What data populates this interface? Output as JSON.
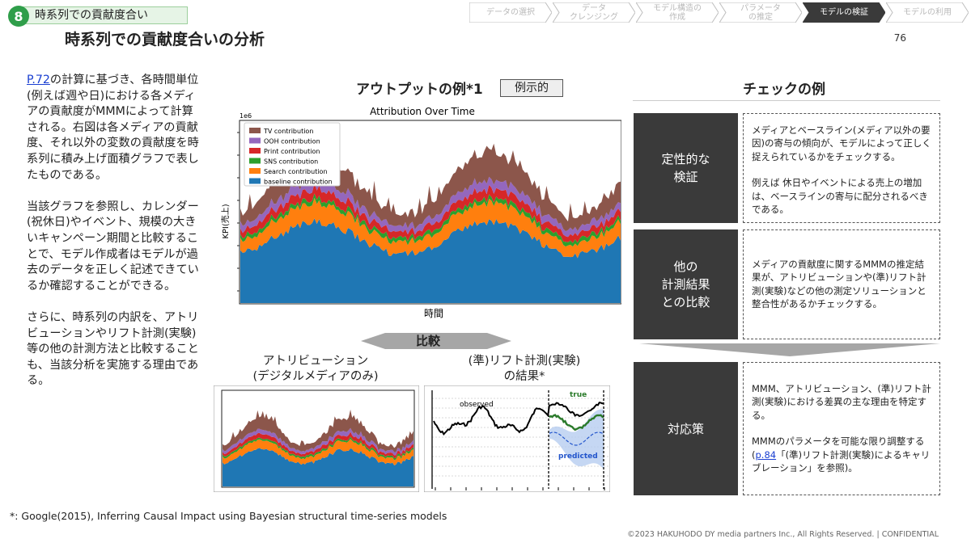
{
  "header": {
    "section_number": "8",
    "section_label": "時系列での貢献度合い",
    "page_title": "時系列での貢献度合いの分析",
    "page_number": "76"
  },
  "steps": [
    {
      "label": "データの選択",
      "active": false
    },
    {
      "label": "データ\nクレンジング",
      "active": false
    },
    {
      "label": "モデル構造の\n作成",
      "active": false
    },
    {
      "label": "パラメータ\nの推定",
      "active": false
    },
    {
      "label": "モデルの検証",
      "active": true
    },
    {
      "label": "モデルの利用",
      "active": false
    }
  ],
  "left": {
    "p1_link": "P.72",
    "p1_text": "の計算に基づき、各時間単位(例えば週や日)における各メディアの貢献度がMMMによって計算される。右図は各メディアの貢献度、それ以外の変数の貢献度を時系列に積み上げ面積グラフで表したものである。",
    "p2": "当該グラフを参照し、カレンダー(祝休日)やイベント、規模の大きいキャンペーン期間と比較することで、モデル作成者はモデルが過去のデータを正しく記述できているか確認することができる。",
    "p3": "さらに、時系列の内訳を、アトリビューションやリフト計測(実験)等の他の計測方法と比較することも、当該分析を実施する理由である。"
  },
  "middle": {
    "heading": "アウトプットの例*1",
    "tag": "例示的",
    "compare": "比較",
    "attribution_title": "アトリビューション\n(デジタルメディアのみ)",
    "lift_title": "(準)リフト計測(実験)\nの結果*"
  },
  "chart_data": [
    {
      "type": "area",
      "title": "Attribution Over Time",
      "xlabel": "時間",
      "ylabel": "KPI(売上)",
      "y_scale_label": "1e6",
      "legend_position": "top-left",
      "series": [
        {
          "name": "TV contribution",
          "color": "#8c564b"
        },
        {
          "name": "OOH contribution",
          "color": "#9467bd"
        },
        {
          "name": "Print contribution",
          "color": "#d62728"
        },
        {
          "name": "SNS contribution",
          "color": "#2ca02c"
        },
        {
          "name": "Search contribution",
          "color": "#ff7f0e"
        },
        {
          "name": "baseline contribution",
          "color": "#1f77b4"
        }
      ]
    },
    {
      "type": "area",
      "title": "",
      "series": [
        {
          "name": "TV contribution",
          "color": "#8c564b"
        },
        {
          "name": "OOH contribution",
          "color": "#9467bd"
        },
        {
          "name": "Print contribution",
          "color": "#d62728"
        },
        {
          "name": "SNS contribution",
          "color": "#2ca02c"
        },
        {
          "name": "Search contribution",
          "color": "#ff7f0e"
        },
        {
          "name": "baseline contribution",
          "color": "#1f77b4"
        }
      ]
    },
    {
      "type": "line",
      "annotations": {
        "observed": "observed",
        "true": "true",
        "predicted": "predicted"
      },
      "series": [
        {
          "name": "observed",
          "color": "#000000"
        },
        {
          "name": "true",
          "color": "#2a7a2a"
        },
        {
          "name": "predicted",
          "color": "#2255cc"
        }
      ]
    }
  ],
  "right": {
    "heading": "チェックの例",
    "box1_label": "定性的な\n検証",
    "box1_p1": "メディアとベースライン(メディア以外の要因)の寄与の傾向が、モデルによって正しく捉えられているかをチェックする。",
    "box1_p2": "例えば 休日やイベントによる売上の増加は、ベースラインの寄与に配分されるべきである。",
    "box2_label": "他の\n計測結果\nとの比較",
    "box2_p1": "メディアの貢献度に関するMMMの推定結果が、アトリビューションや(準)リフト計測(実験)などの他の測定ソリューションと整合性があるかチェックする。",
    "box3_label": "対応策",
    "box3_p1": "MMM、アトリビューション、(準)リフト計測(実験)における差異の主な理由を特定する。",
    "box3_p2_pre": "MMMのパラメータを可能な限り調整する(",
    "box3_p2_link": "p.84",
    "box3_p2_post": "「(準)リフト計測(実験)によるキャリブレーション」を参照)。"
  },
  "footer": {
    "footnote": "*: Google(2015), Inferring Causal Impact using Bayesian structural time-series models",
    "copyright": "©2023 HAKUHODO DY media partners Inc., All  Rights  Reserved. | CONFIDENTIAL"
  },
  "colors": {
    "accent_green": "#2f9e4a",
    "dark_box": "#3a3a3a",
    "active_step": "#3a3a3a"
  }
}
